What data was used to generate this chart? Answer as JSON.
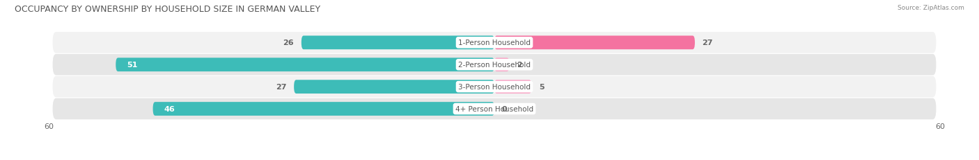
{
  "title": "OCCUPANCY BY OWNERSHIP BY HOUSEHOLD SIZE IN GERMAN VALLEY",
  "source": "Source: ZipAtlas.com",
  "categories": [
    "1-Person Household",
    "2-Person Household",
    "3-Person Household",
    "4+ Person Household"
  ],
  "owner_values": [
    26,
    51,
    27,
    46
  ],
  "renter_values": [
    27,
    2,
    5,
    0
  ],
  "owner_color": "#3DBCB8",
  "renter_color": "#F472A0",
  "renter_color_light": "#F8A8C8",
  "row_bg_light": "#F2F2F2",
  "row_bg_dark": "#E6E6E6",
  "x_max": 60,
  "label_fontsize": 8,
  "title_fontsize": 9,
  "legend_fontsize": 8,
  "axis_label_fontsize": 8,
  "figsize": [
    14.06,
    2.32
  ],
  "dpi": 100
}
